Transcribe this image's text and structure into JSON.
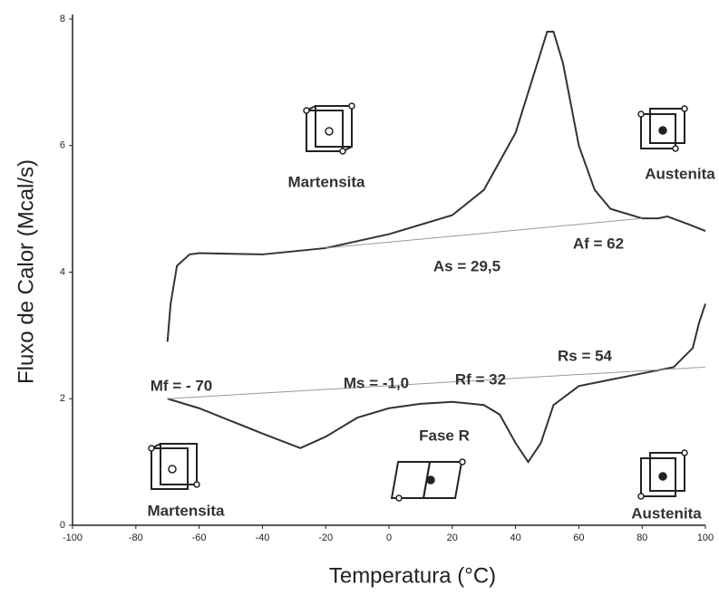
{
  "chart_data": {
    "type": "line",
    "x_label": "Temperatura (°C)",
    "y_label": "Fluxo de Calor (Mcal/s)",
    "xlim": [
      -100,
      100
    ],
    "xticks": [
      -100,
      -80,
      -60,
      -40,
      -20,
      0,
      20,
      40,
      60,
      80,
      100
    ],
    "ylim": [
      0,
      8
    ],
    "yticks": [
      0,
      2,
      4,
      6,
      8
    ],
    "series": [
      {
        "color": "#333333",
        "x": [
          -70,
          -69,
          -67,
          -63,
          -60,
          -40,
          -20,
          0,
          20,
          30,
          40,
          45,
          50,
          52,
          55,
          60,
          65,
          70,
          80,
          85,
          88,
          95,
          100
        ],
        "values": [
          2.9,
          3.5,
          4.1,
          4.28,
          4.3,
          4.28,
          4.38,
          4.6,
          4.9,
          5.3,
          6.2,
          7.0,
          7.8,
          7.8,
          7.3,
          6.0,
          5.3,
          5.0,
          4.85,
          4.85,
          4.88,
          4.75,
          4.65
        ]
      },
      {
        "color": "#333333",
        "x": [
          -70,
          -60,
          -40,
          -28,
          -20,
          -10,
          0,
          10,
          20,
          30,
          35,
          40,
          44,
          48,
          52,
          60,
          70,
          80,
          90,
          96,
          98,
          100
        ],
        "values": [
          2.0,
          1.85,
          1.45,
          1.22,
          1.4,
          1.7,
          1.85,
          1.92,
          1.95,
          1.9,
          1.75,
          1.3,
          1.0,
          1.3,
          1.9,
          2.2,
          2.3,
          2.4,
          2.5,
          2.8,
          3.2,
          3.5
        ]
      },
      {
        "color": "#999999",
        "x": [
          -20,
          80
        ],
        "values": [
          4.38,
          4.85
        ]
      },
      {
        "color": "#999999",
        "x": [
          -70,
          100
        ],
        "values": [
          2.0,
          2.5
        ]
      }
    ],
    "annotations": [
      "Martensita",
      "Austenita",
      "As = 29,5",
      "Af = 62",
      "Mf = - 70",
      "Ms = -1,0",
      "Rf = 32",
      "Rs = 54",
      "Fase R",
      "Martensita",
      "Austenita"
    ]
  }
}
